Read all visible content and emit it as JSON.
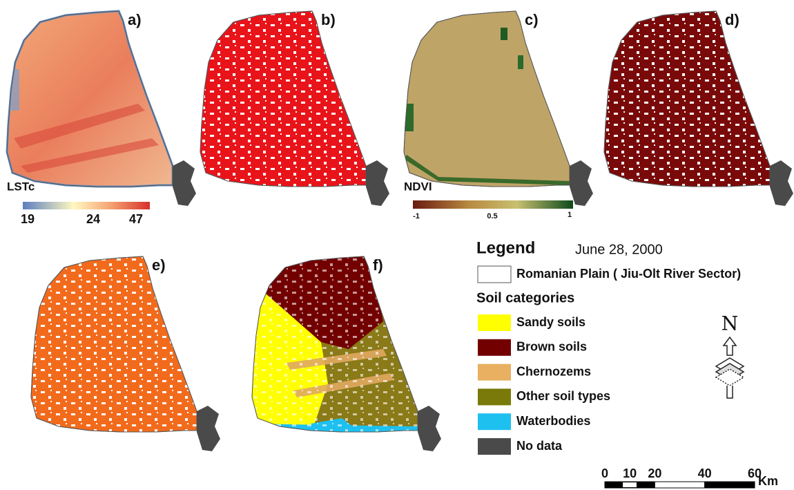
{
  "panels": [
    {
      "label": "a)"
    },
    {
      "label": "b)"
    },
    {
      "label": "c)"
    },
    {
      "label": "d)"
    },
    {
      "label": "e)"
    },
    {
      "label": "f)"
    }
  ],
  "lst_colorbar": {
    "title": "LSTc",
    "ticks": [
      19,
      24,
      47
    ]
  },
  "ndvi_colorbar": {
    "title": "NDVI",
    "ticks": [
      -1,
      0.5,
      1
    ]
  },
  "legend": {
    "title": "Legend",
    "date": "June 28, 2000",
    "boundary": "Romanian Plain ( Jiu-Olt River Sector)",
    "soil_title": "Soil categories",
    "items": [
      {
        "name": "Sandy soils",
        "color": "#ffff00"
      },
      {
        "name": "Brown soils",
        "color": "#730000"
      },
      {
        "name": "Chernozems",
        "color": "#e8b060"
      },
      {
        "name": "Other soil types",
        "color": "#7a7a0a"
      },
      {
        "name": "Waterbodies",
        "color": "#1ec0f0"
      },
      {
        "name": "No data",
        "color": "#4a4a4a"
      }
    ]
  },
  "north": "N",
  "scale_bar": {
    "ticks": [
      0,
      10,
      20,
      40,
      60
    ],
    "unit": "Km"
  }
}
